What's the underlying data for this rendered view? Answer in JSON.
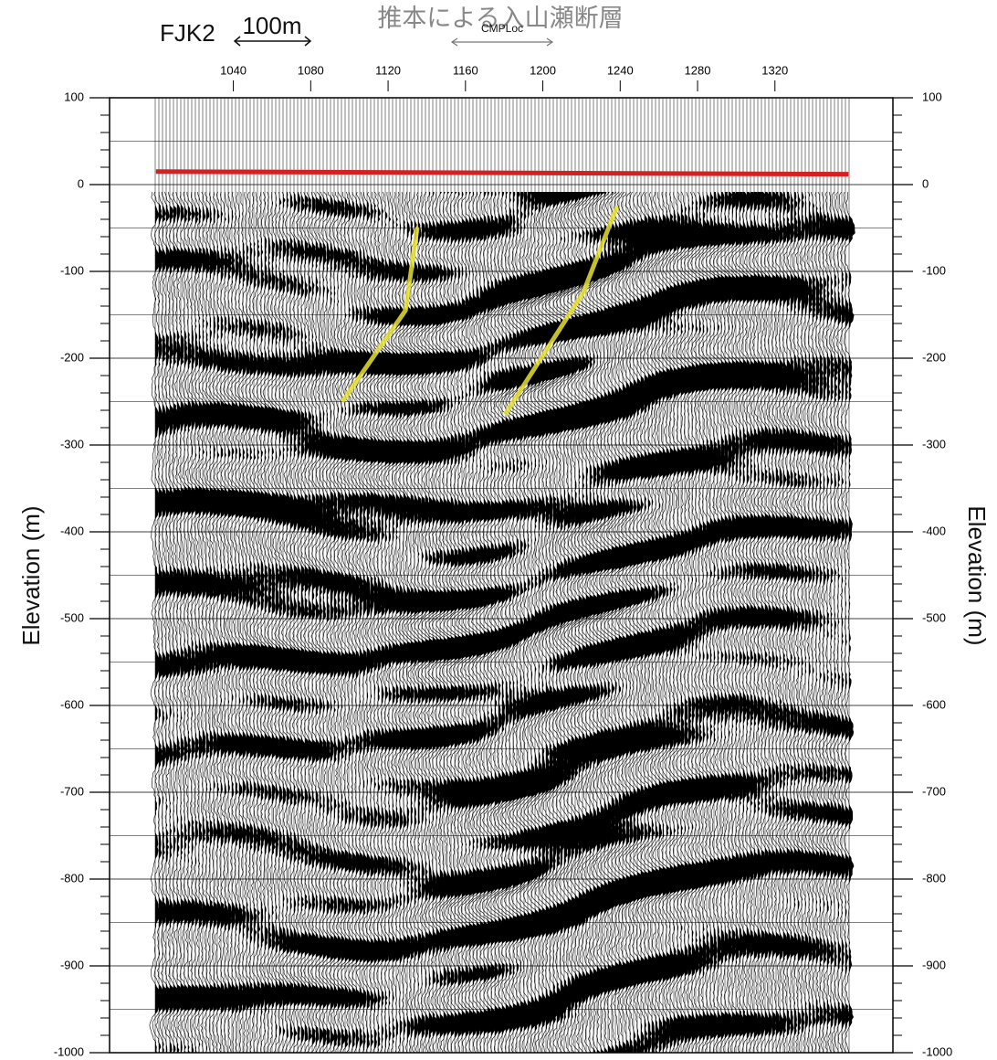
{
  "chart_data": {
    "type": "seismic-section",
    "title": "推本による入山瀬断層",
    "section_label": "FJK2",
    "scale_label": "100m",
    "xlabel": "CMPLoc",
    "ylabel": "Elevation (m)",
    "xlim": [
      976,
      1381
    ],
    "xticks": [
      1040,
      1080,
      1120,
      1160,
      1200,
      1240,
      1280,
      1320
    ],
    "ylim": [
      -1000,
      100
    ],
    "yticks": [
      100,
      0,
      -100,
      -200,
      -300,
      -400,
      -500,
      -600,
      -700,
      -800,
      -900,
      -1000
    ],
    "grid": true,
    "surface": {
      "color": "#d42020",
      "x": [
        1000,
        1358
      ],
      "values": [
        15,
        12
      ]
    },
    "faults": [
      {
        "color": "#e8e030",
        "x": [
          1135,
          1129,
          1097
        ],
        "values": [
          -51,
          -145,
          -248
        ]
      },
      {
        "color": "#e8e030",
        "x": [
          1238,
          1221,
          1181
        ],
        "values": [
          -27,
          -124,
          -263
        ]
      }
    ]
  }
}
